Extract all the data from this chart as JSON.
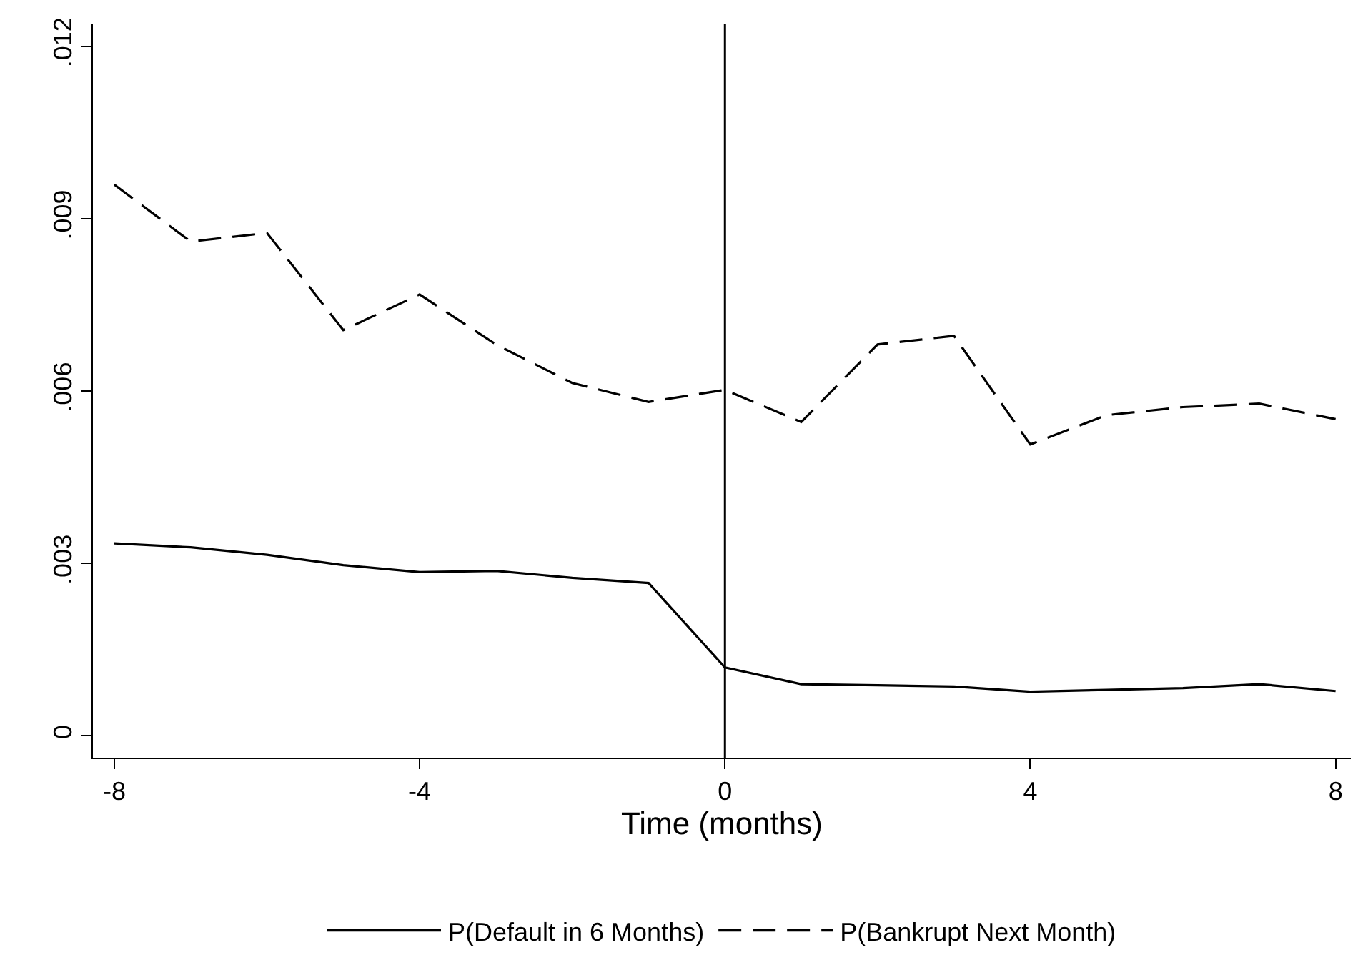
{
  "chart_data": {
    "type": "line",
    "xlabel": "Time (months)",
    "x": [
      -8,
      -7,
      -6,
      -5,
      -4,
      -3,
      -2,
      -1,
      0,
      1,
      2,
      3,
      4,
      5,
      6,
      7,
      8
    ],
    "series": [
      {
        "name": "P(Default in 6 Months)",
        "color": "#000000",
        "line_style": "solid",
        "values": [
          0.00335,
          0.00328,
          0.00315,
          0.00297,
          0.00285,
          0.00287,
          0.00275,
          0.00266,
          0.00119,
          0.0009,
          0.00088,
          0.00086,
          0.00077,
          0.0008,
          0.00083,
          0.0009,
          0.00078
        ]
      },
      {
        "name": "P(Bankrupt Next Month)",
        "color": "#000000",
        "line_style": "dashed",
        "values": [
          0.00959,
          0.0086,
          0.00875,
          0.00706,
          0.00768,
          0.00681,
          0.00614,
          0.00581,
          0.00602,
          0.00546,
          0.00681,
          0.00696,
          0.00507,
          0.00558,
          0.00572,
          0.00578,
          0.00551
        ]
      }
    ],
    "xlim": [
      -8.28,
      8.2
    ],
    "xticks": [
      -8,
      -4,
      0,
      4,
      8
    ],
    "ylim": [
      -0.00038,
      0.01238
    ],
    "yticks": [
      {
        "value": 0,
        "label": "0"
      },
      {
        "value": 0.003,
        "label": ".003"
      },
      {
        "value": 0.006,
        "label": ".006"
      },
      {
        "value": 0.009,
        "label": ".009"
      },
      {
        "value": 0.012,
        "label": ".012"
      }
    ],
    "ref_lines": [
      {
        "axis": "x",
        "value": 0,
        "color": "#000000"
      }
    ],
    "grid": false,
    "legend": "bottom",
    "marker": "none"
  }
}
